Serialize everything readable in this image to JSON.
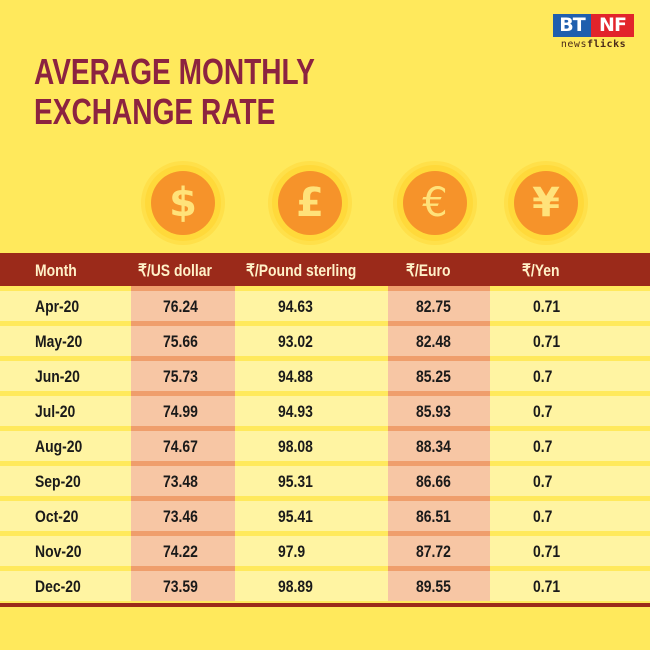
{
  "brand": {
    "left": "BT",
    "right": "NF",
    "sub_light": "news",
    "sub_bold": "flicks",
    "colors": {
      "bt": "#1f5fae",
      "nf": "#e2242b"
    }
  },
  "title": {
    "line1": "AVERAGE MONTHLY",
    "line2": "EXCHANGE RATE"
  },
  "coins": [
    {
      "icon": "dollar-icon",
      "glyph": "$"
    },
    {
      "icon": "pound-icon",
      "glyph": "£"
    },
    {
      "icon": "euro-icon",
      "glyph": "€"
    },
    {
      "icon": "yen-icon",
      "glyph": "¥"
    }
  ],
  "table": {
    "headers": [
      "Month",
      "₹/US dollar",
      "₹/Pound sterling",
      "₹/Euro",
      "₹/Yen"
    ],
    "rows": [
      [
        "Apr-20",
        "76.24",
        "94.63",
        "82.75",
        "0.71"
      ],
      [
        "May-20",
        "75.66",
        "93.02",
        "82.48",
        "0.71"
      ],
      [
        "Jun-20",
        "75.73",
        "94.88",
        "85.25",
        "0.7"
      ],
      [
        "Jul-20",
        "74.99",
        "94.93",
        "85.93",
        "0.7"
      ],
      [
        "Aug-20",
        "74.67",
        "98.08",
        "88.34",
        "0.7"
      ],
      [
        "Sep-20",
        "73.48",
        "95.31",
        "86.66",
        "0.7"
      ],
      [
        "Oct-20",
        "73.46",
        "95.41",
        "86.51",
        "0.7"
      ],
      [
        "Nov-20",
        "74.22",
        "97.9",
        "87.72",
        "0.71"
      ],
      [
        "Dec-20",
        "73.59",
        "98.89",
        "89.55",
        "0.71"
      ]
    ]
  },
  "colors": {
    "background": "#ffe95c",
    "title": "#8c2340",
    "header_bar": "#9b2a1a",
    "row": "#fff4a2",
    "highlight": "#f7c6a4",
    "coin": "#f6932a"
  },
  "chart_data": {
    "type": "table",
    "title": "Average Monthly Exchange Rate",
    "categories": [
      "Apr-20",
      "May-20",
      "Jun-20",
      "Jul-20",
      "Aug-20",
      "Sep-20",
      "Oct-20",
      "Nov-20",
      "Dec-20"
    ],
    "series": [
      {
        "name": "₹/US dollar",
        "values": [
          76.24,
          75.66,
          75.73,
          74.99,
          74.67,
          73.48,
          73.46,
          74.22,
          73.59
        ]
      },
      {
        "name": "₹/Pound sterling",
        "values": [
          94.63,
          93.02,
          94.88,
          94.93,
          98.08,
          95.31,
          95.41,
          97.9,
          98.89
        ]
      },
      {
        "name": "₹/Euro",
        "values": [
          82.75,
          82.48,
          85.25,
          85.93,
          88.34,
          86.66,
          86.51,
          87.72,
          89.55
        ]
      },
      {
        "name": "₹/Yen",
        "values": [
          0.71,
          0.71,
          0.7,
          0.7,
          0.7,
          0.7,
          0.7,
          0.71,
          0.71
        ]
      }
    ]
  }
}
